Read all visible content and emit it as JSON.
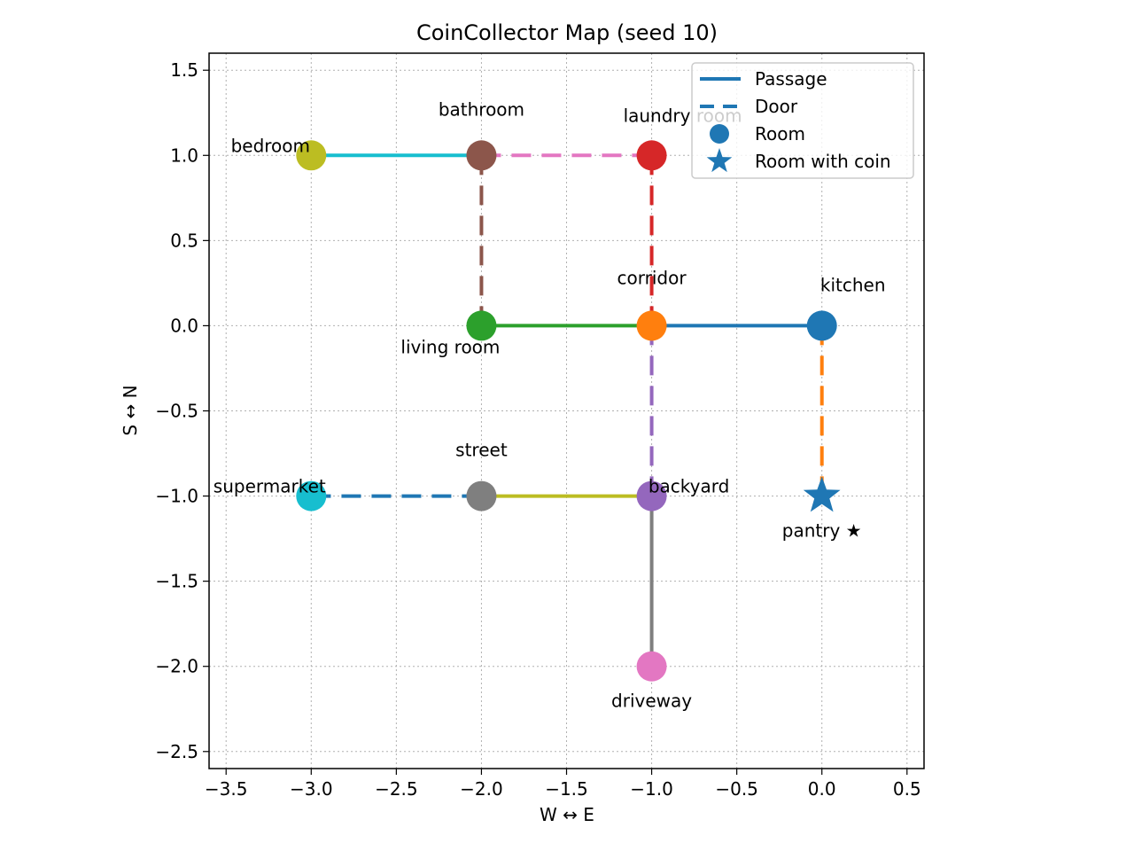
{
  "chart_data": {
    "type": "scatter",
    "title": "CoinCollector Map (seed 10)",
    "xlabel": "W ↔ E",
    "ylabel": "S ↔ N",
    "xlim": [
      -3.6,
      0.6
    ],
    "ylim": [
      -2.6,
      1.6
    ],
    "xticks": [
      -3.5,
      -3.0,
      -2.5,
      -2.0,
      -1.5,
      -1.0,
      -0.5,
      0.0,
      0.5
    ],
    "xtick_labels": [
      "−3.5",
      "−3.0",
      "−2.5",
      "−2.0",
      "−1.5",
      "−1.0",
      "−0.5",
      "0.0",
      "0.5"
    ],
    "yticks": [
      1.5,
      1.0,
      0.5,
      0.0,
      -0.5,
      -1.0,
      -1.5,
      -2.0,
      -2.5
    ],
    "ytick_labels": [
      "1.5",
      "1.0",
      "0.5",
      "0.0",
      "−0.5",
      "−1.0",
      "−1.5",
      "−2.0",
      "−2.5"
    ],
    "grid": true,
    "legend": {
      "position": "top-right",
      "entries": [
        {
          "label": "Passage",
          "kind": "solid-line",
          "color": "#1f77b4"
        },
        {
          "label": "Door",
          "kind": "dashed-line",
          "color": "#1f77b4"
        },
        {
          "label": "Room",
          "kind": "circle",
          "color": "#1f77b4"
        },
        {
          "label": "Room with coin",
          "kind": "star",
          "color": "#1f77b4"
        }
      ]
    },
    "rooms": [
      {
        "name": "kitchen",
        "label": "kitchen",
        "x": 0,
        "y": 0,
        "color": "#1f77b4",
        "marker": "circle",
        "label_pos": "above-right"
      },
      {
        "name": "corridor",
        "label": "corridor",
        "x": -1,
        "y": 0,
        "color": "#ff7f0e",
        "marker": "circle",
        "label_pos": "above"
      },
      {
        "name": "living-room",
        "label": "living room",
        "x": -2,
        "y": 0,
        "color": "#2ca02c",
        "marker": "circle",
        "label_pos": "below-left"
      },
      {
        "name": "laundry-room",
        "label": "laundry room",
        "x": -1,
        "y": 1,
        "color": "#d62728",
        "marker": "circle",
        "label_pos": "above-right"
      },
      {
        "name": "backyard",
        "label": "backyard",
        "x": -1,
        "y": -1,
        "color": "#9467bd",
        "marker": "circle",
        "label_pos": "above-right"
      },
      {
        "name": "bathroom",
        "label": "bathroom",
        "x": -2,
        "y": 1,
        "color": "#8c564b",
        "marker": "circle",
        "label_pos": "above"
      },
      {
        "name": "driveway",
        "label": "driveway",
        "x": -1,
        "y": -2,
        "color": "#e377c2",
        "marker": "circle",
        "label_pos": "below"
      },
      {
        "name": "street",
        "label": "street",
        "x": -2,
        "y": -1,
        "color": "#7f7f7f",
        "marker": "circle",
        "label_pos": "above"
      },
      {
        "name": "bedroom",
        "label": "bedroom",
        "x": -3,
        "y": 1,
        "color": "#bcbd22",
        "marker": "circle",
        "label_pos": "above-left"
      },
      {
        "name": "supermarket",
        "label": "supermarket",
        "x": -3,
        "y": -1,
        "color": "#17becf",
        "marker": "circle",
        "label_pos": "above-left"
      },
      {
        "name": "pantry",
        "label": "pantry ★",
        "x": 0,
        "y": -1,
        "color": "#1f77b4",
        "marker": "star",
        "label_pos": "below"
      }
    ],
    "connections": [
      {
        "from": [
          0,
          0
        ],
        "to": [
          -1,
          0
        ],
        "kind": "passage",
        "color": "#1f77b4"
      },
      {
        "from": [
          0,
          0
        ],
        "to": [
          0,
          -1
        ],
        "kind": "door",
        "color": "#ff7f0e"
      },
      {
        "from": [
          -1,
          0
        ],
        "to": [
          -2,
          0
        ],
        "kind": "passage",
        "color": "#2ca02c"
      },
      {
        "from": [
          -1,
          0
        ],
        "to": [
          -1,
          1
        ],
        "kind": "door",
        "color": "#d62728"
      },
      {
        "from": [
          -1,
          0
        ],
        "to": [
          -1,
          -1
        ],
        "kind": "door",
        "color": "#9467bd"
      },
      {
        "from": [
          -2,
          0
        ],
        "to": [
          -2,
          1
        ],
        "kind": "door",
        "color": "#8c564b"
      },
      {
        "from": [
          -2,
          1
        ],
        "to": [
          -1,
          1
        ],
        "kind": "door",
        "color": "#e377c2"
      },
      {
        "from": [
          -2,
          1
        ],
        "to": [
          -3,
          1
        ],
        "kind": "passage",
        "color": "#17becf"
      },
      {
        "from": [
          -1,
          -1
        ],
        "to": [
          -1,
          -2
        ],
        "kind": "passage",
        "color": "#7f7f7f"
      },
      {
        "from": [
          -1,
          -1
        ],
        "to": [
          -2,
          -1
        ],
        "kind": "passage",
        "color": "#bcbd22"
      },
      {
        "from": [
          -2,
          -1
        ],
        "to": [
          -3,
          -1
        ],
        "kind": "door",
        "color": "#1f77b4"
      }
    ]
  }
}
